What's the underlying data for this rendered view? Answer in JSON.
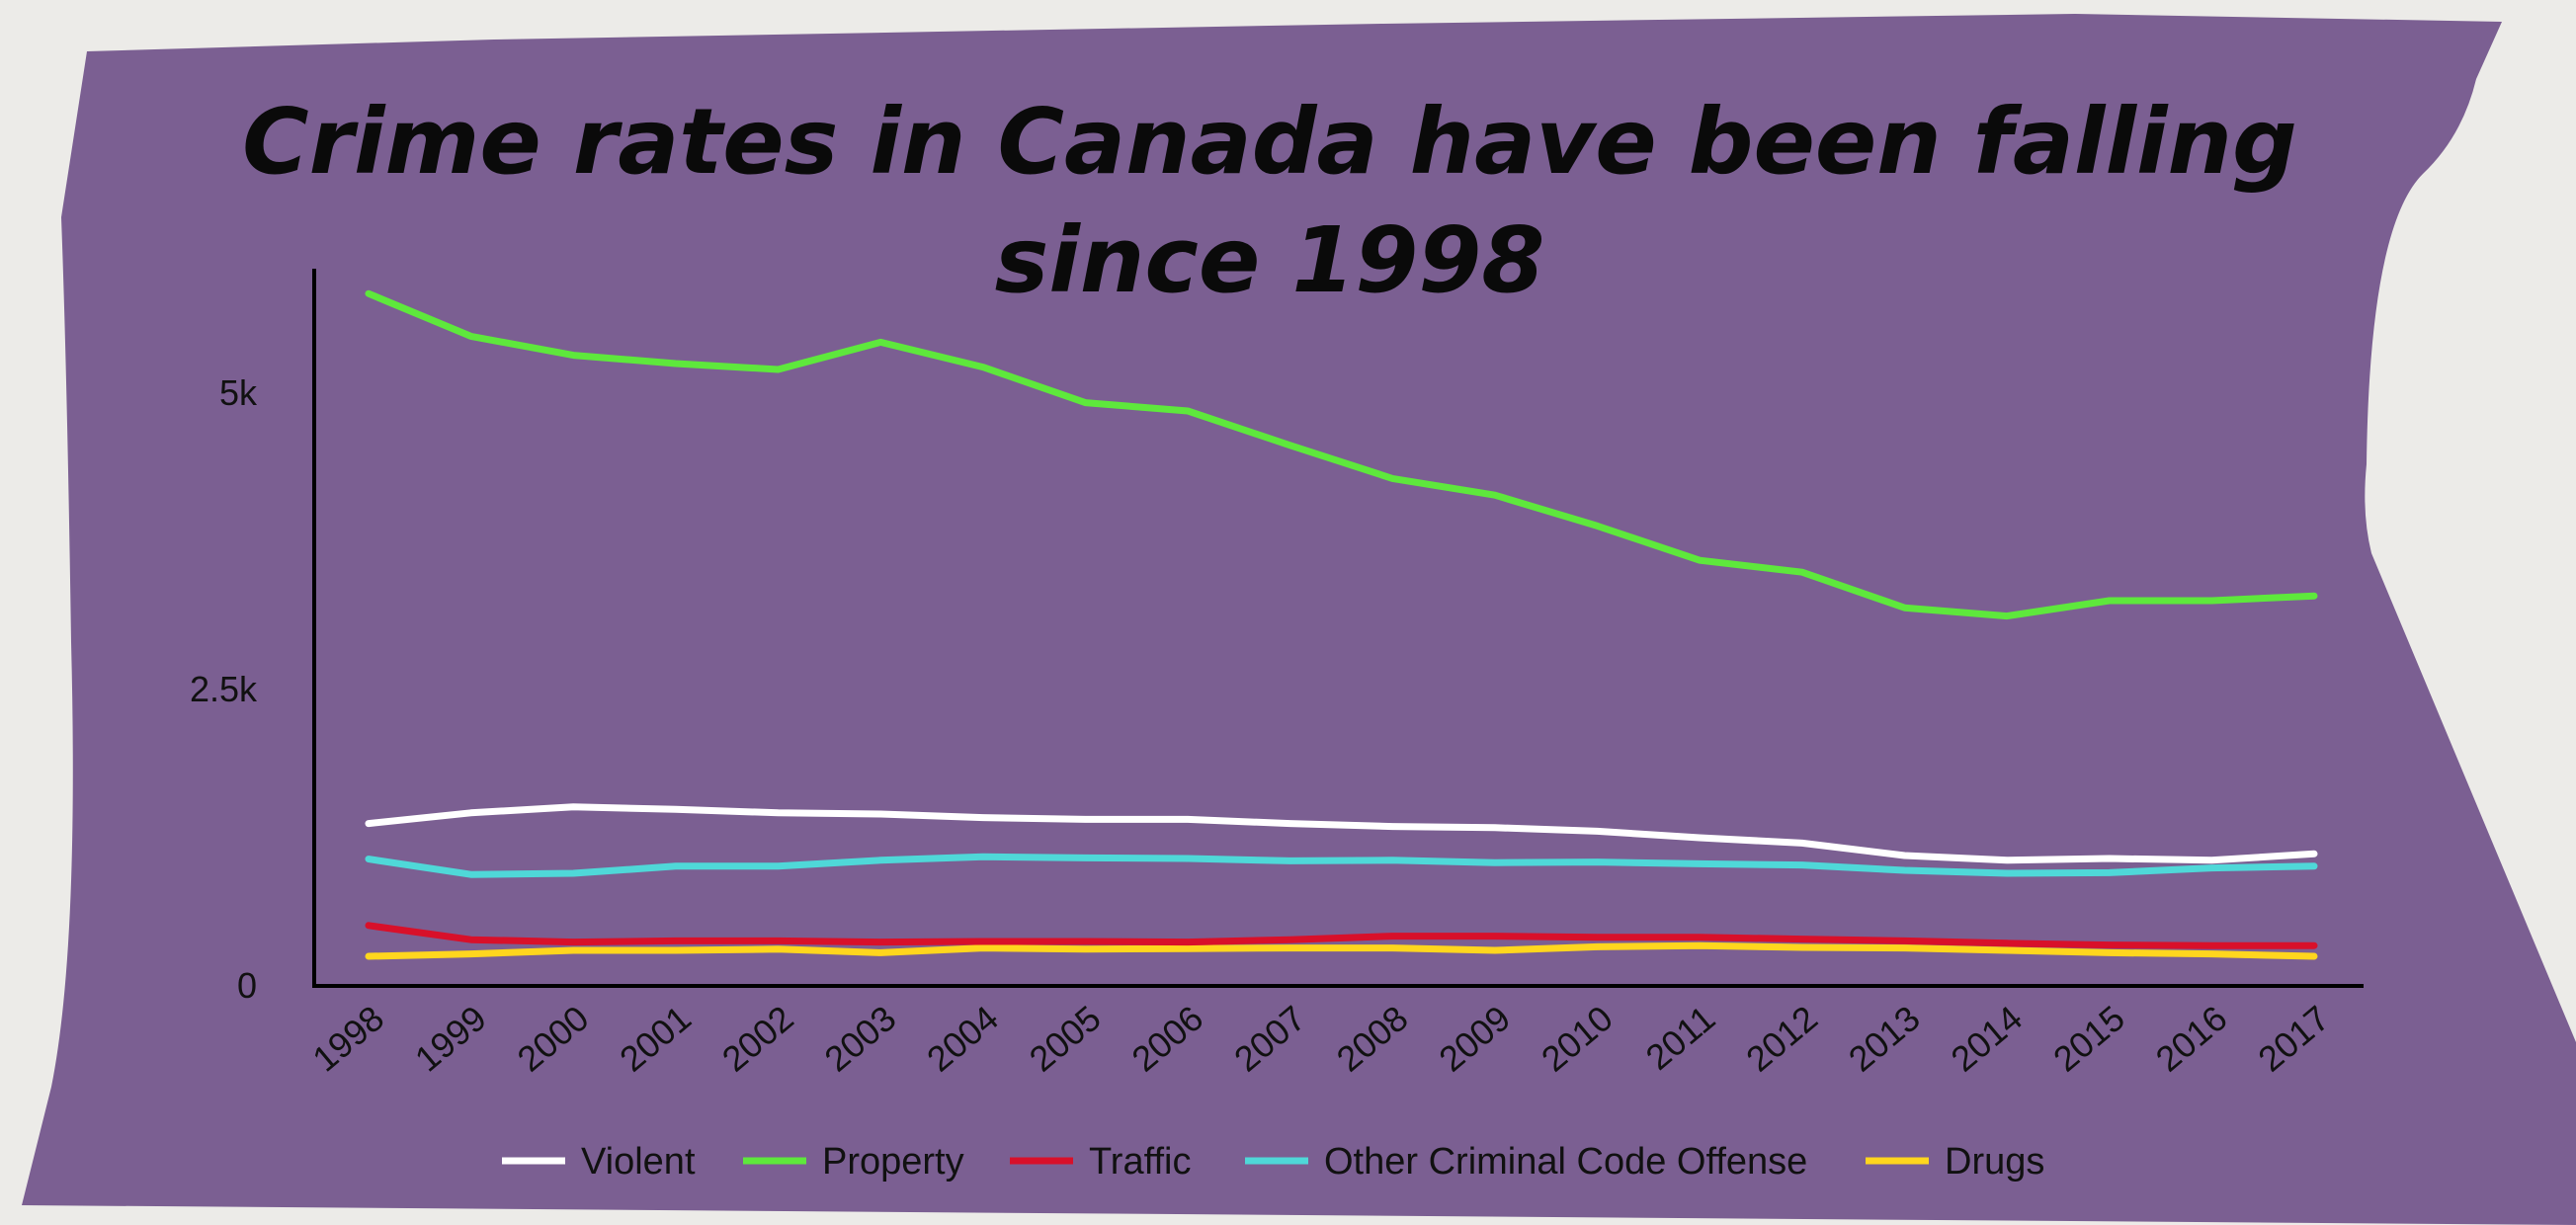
{
  "chart_data": {
    "type": "line",
    "title_lines": [
      "Crime rates in Canada have been falling",
      "since 1998"
    ],
    "x": [
      "1998",
      "1999",
      "2000",
      "2001",
      "2002",
      "2003",
      "2004",
      "2005",
      "2006",
      "2007",
      "2008",
      "2009",
      "2010",
      "2011",
      "2012",
      "2013",
      "2014",
      "2015",
      "2016",
      "2017"
    ],
    "yticks": [
      {
        "value": 0,
        "label": "0"
      },
      {
        "value": 2500,
        "label": "2.5k"
      },
      {
        "value": 5000,
        "label": "5k"
      }
    ],
    "ylim": [
      0,
      6000
    ],
    "grid": false,
    "legend_position": "bottom",
    "series": [
      {
        "name": "Violent",
        "color": "#ffffff",
        "values": [
          1370,
          1460,
          1510,
          1490,
          1460,
          1450,
          1420,
          1405,
          1405,
          1370,
          1345,
          1335,
          1305,
          1250,
          1205,
          1100,
          1060,
          1075,
          1060,
          1115
        ]
      },
      {
        "name": "Property",
        "color": "#5ee83c",
        "values": [
          5840,
          5480,
          5320,
          5250,
          5200,
          5430,
          5220,
          4920,
          4850,
          4560,
          4280,
          4140,
          3880,
          3590,
          3490,
          3190,
          3120,
          3250,
          3250,
          3290
        ]
      },
      {
        "name": "Traffic",
        "color": "#d8102a",
        "values": [
          510,
          390,
          370,
          380,
          380,
          370,
          375,
          375,
          370,
          390,
          420,
          420,
          410,
          410,
          395,
          380,
          360,
          345,
          340,
          340
        ]
      },
      {
        "name": "Other Criminal Code Offense",
        "color": "#4fd8d8",
        "values": [
          1070,
          940,
          950,
          1010,
          1010,
          1060,
          1090,
          1080,
          1075,
          1055,
          1060,
          1040,
          1045,
          1030,
          1020,
          975,
          950,
          955,
          995,
          1010
        ]
      },
      {
        "name": "Drugs",
        "color": "#ffd61e",
        "values": [
          250,
          270,
          300,
          300,
          310,
          280,
          320,
          310,
          315,
          320,
          320,
          300,
          330,
          340,
          325,
          320,
          300,
          280,
          270,
          250
        ]
      }
    ]
  },
  "colors": {
    "panel": "#7b5f92",
    "background": "#ecebe8",
    "axis": "#000000"
  }
}
